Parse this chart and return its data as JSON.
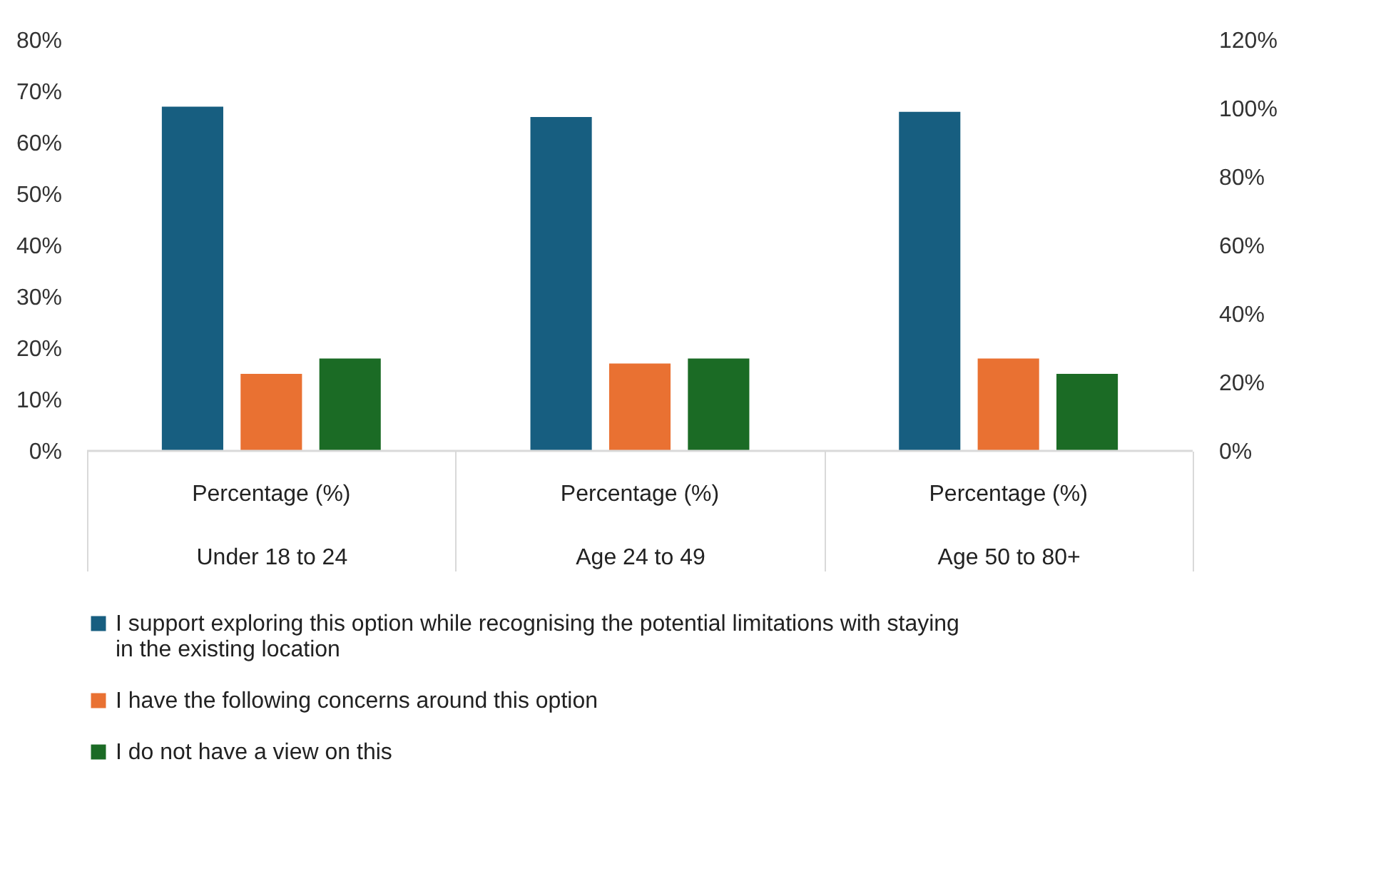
{
  "chart_data": {
    "type": "bar",
    "categories": [
      "Under 18 to 24",
      "Age 24 to 49",
      "Age 50 to 80+"
    ],
    "series": [
      {
        "name": "I support exploring this option while recognising the potential limitations with staying in the existing location",
        "color": "#175e80",
        "values": [
          67,
          65,
          66
        ]
      },
      {
        "name": "I have the following concerns around this option",
        "color": "#e97132",
        "values": [
          15,
          17,
          18
        ]
      },
      {
        "name": "I do not have a view on this",
        "color": "#1b6b25",
        "values": [
          18,
          18,
          15
        ]
      }
    ],
    "ylim": [
      0,
      80
    ],
    "yticks": [
      {
        "value": 0,
        "label": "0%"
      },
      {
        "value": 10,
        "label": "10%"
      },
      {
        "value": 20,
        "label": "20%"
      },
      {
        "value": 30,
        "label": "30%"
      },
      {
        "value": 40,
        "label": "40%"
      },
      {
        "value": 50,
        "label": "50%"
      },
      {
        "value": 60,
        "label": "60%"
      },
      {
        "value": 70,
        "label": "70%"
      },
      {
        "value": 80,
        "label": "80%"
      }
    ],
    "y2lim": [
      0,
      120
    ],
    "y2ticks": [
      {
        "value": 0,
        "label": "0%"
      },
      {
        "value": 20,
        "label": "20%"
      },
      {
        "value": 40,
        "label": "40%"
      },
      {
        "value": 60,
        "label": "60%"
      },
      {
        "value": 80,
        "label": "80%"
      },
      {
        "value": 100,
        "label": "100%"
      },
      {
        "value": 120,
        "label": "120%"
      }
    ],
    "annotations": [
      "Percentage (%)",
      "Percentage (%)",
      "Percentage (%)"
    ],
    "grid": false,
    "legend": "bottom"
  }
}
